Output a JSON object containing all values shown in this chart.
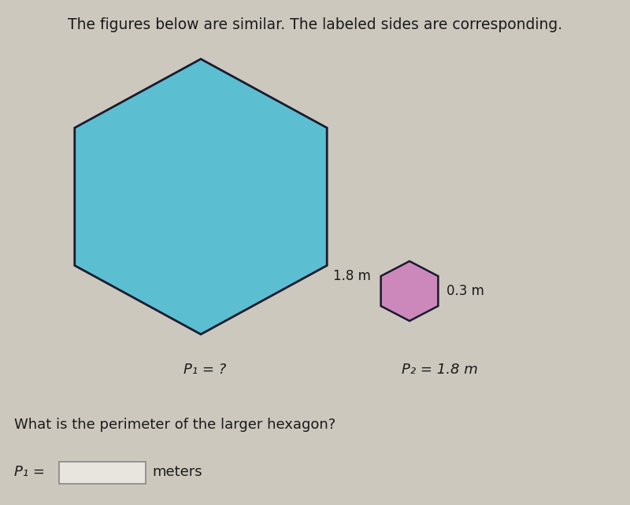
{
  "bg_color": "#ccc8be",
  "title": "The figures below are similar. The labeled sides are corresponding.",
  "title_fontsize": 13.5,
  "large_hex_color": "#5bbfd1",
  "large_hex_edge_color": "#1a1a2e",
  "small_hex_color": "#cc88bb",
  "small_hex_edge_color": "#1a1a2e",
  "large_hex_label": "1.8 m",
  "small_hex_label": "0.3 m",
  "p1_text": "P₁ = ?",
  "p2_text": "P₂ = 1.8 m",
  "question_text": "What is the perimeter of the larger hexagon?",
  "answer_label": "P₁ =",
  "meters_text": "meters",
  "label_fontsize": 12,
  "eq_fontsize": 13,
  "sub_fontsize": 10
}
